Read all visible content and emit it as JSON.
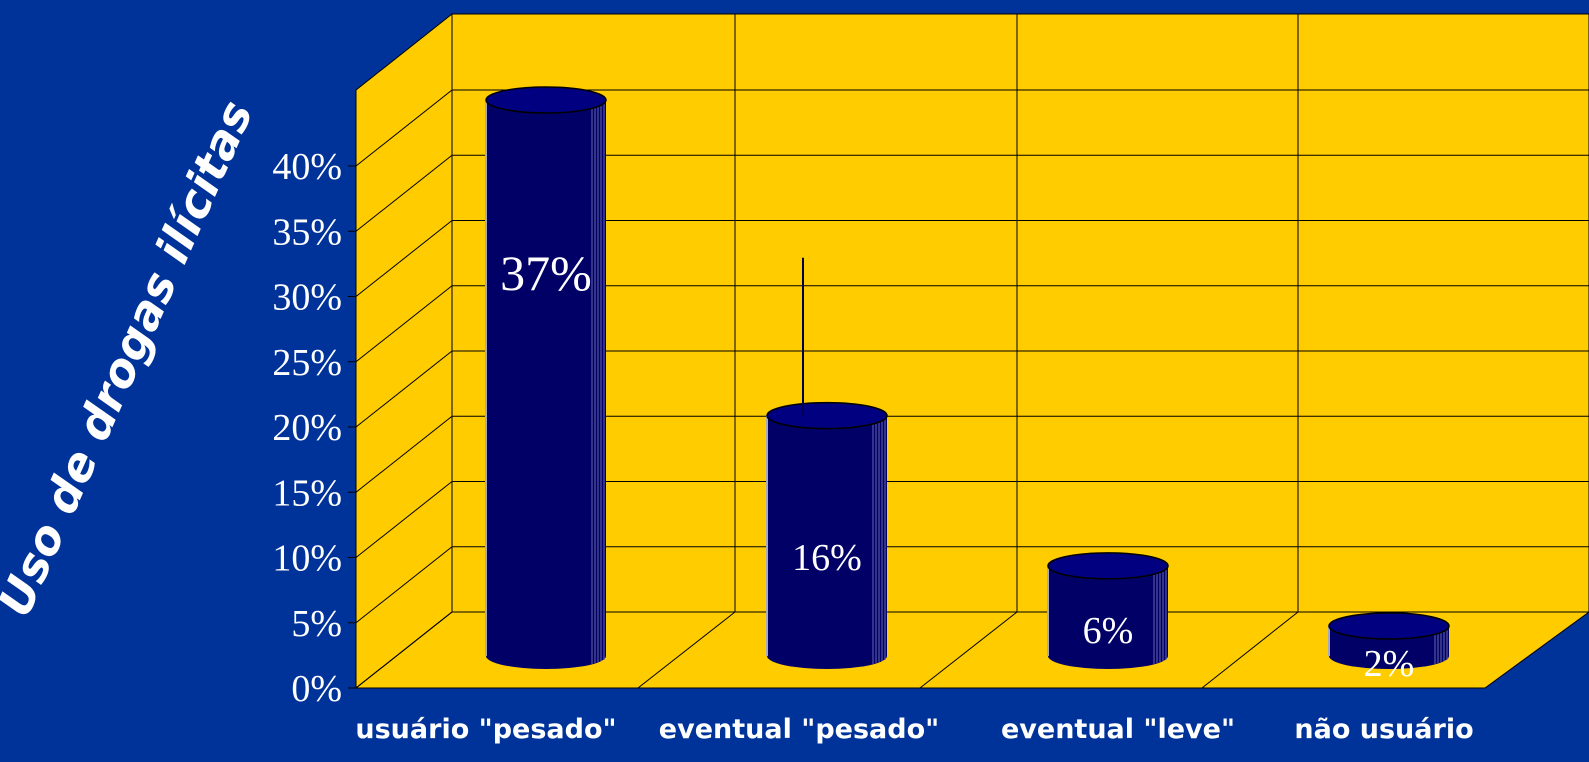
{
  "chart_data": {
    "type": "bar",
    "style": "3d-cylinder",
    "title": "",
    "ylabel": "Uso de drogas ilícitas",
    "xlabel": "",
    "categories": [
      "usuário \"pesado\"",
      "eventual \"pesado\"",
      "eventual \"leve\"",
      "não usuário"
    ],
    "values": [
      37,
      16,
      6,
      2
    ],
    "data_labels": [
      "37%",
      "16%",
      "6%",
      "2%"
    ],
    "ylim": [
      0,
      40
    ],
    "yticks": [
      "0%",
      "5%",
      "10%",
      "15%",
      "20%",
      "25%",
      "30%",
      "35%",
      "40%"
    ],
    "grid": true,
    "legend": "none",
    "error_bars": [
      null,
      26.5,
      null,
      null
    ],
    "colors": {
      "background": "#00339A",
      "plot_wall": "#FFCC00",
      "bar": "#000066",
      "grid": "#000000",
      "text": "#FFFFFF"
    }
  }
}
